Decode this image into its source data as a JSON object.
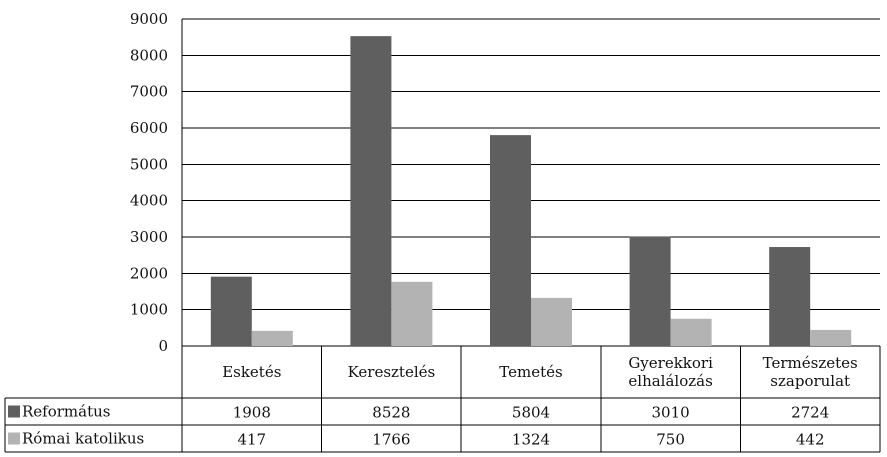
{
  "chart_data": {
    "type": "bar",
    "title": "",
    "xlabel": "",
    "ylabel": "",
    "ylim": [
      0,
      9000
    ],
    "yticks": [
      0,
      1000,
      2000,
      3000,
      4000,
      5000,
      6000,
      7000,
      8000,
      9000
    ],
    "grid": true,
    "legend": "data-table-left",
    "categories": [
      [
        "Esketés"
      ],
      [
        "Keresztelés"
      ],
      [
        "Temetés"
      ],
      [
        "Gyerekkori",
        "elhalálozás"
      ],
      [
        "Természetes",
        "szaporulat"
      ]
    ],
    "series": [
      {
        "name": "Református",
        "color": "#5f5f5f",
        "values": [
          1908,
          8528,
          5804,
          3010,
          2724
        ]
      },
      {
        "name": "Római katolikus",
        "color": "#b3b3b3",
        "values": [
          417,
          1766,
          1324,
          750,
          442
        ]
      }
    ]
  }
}
